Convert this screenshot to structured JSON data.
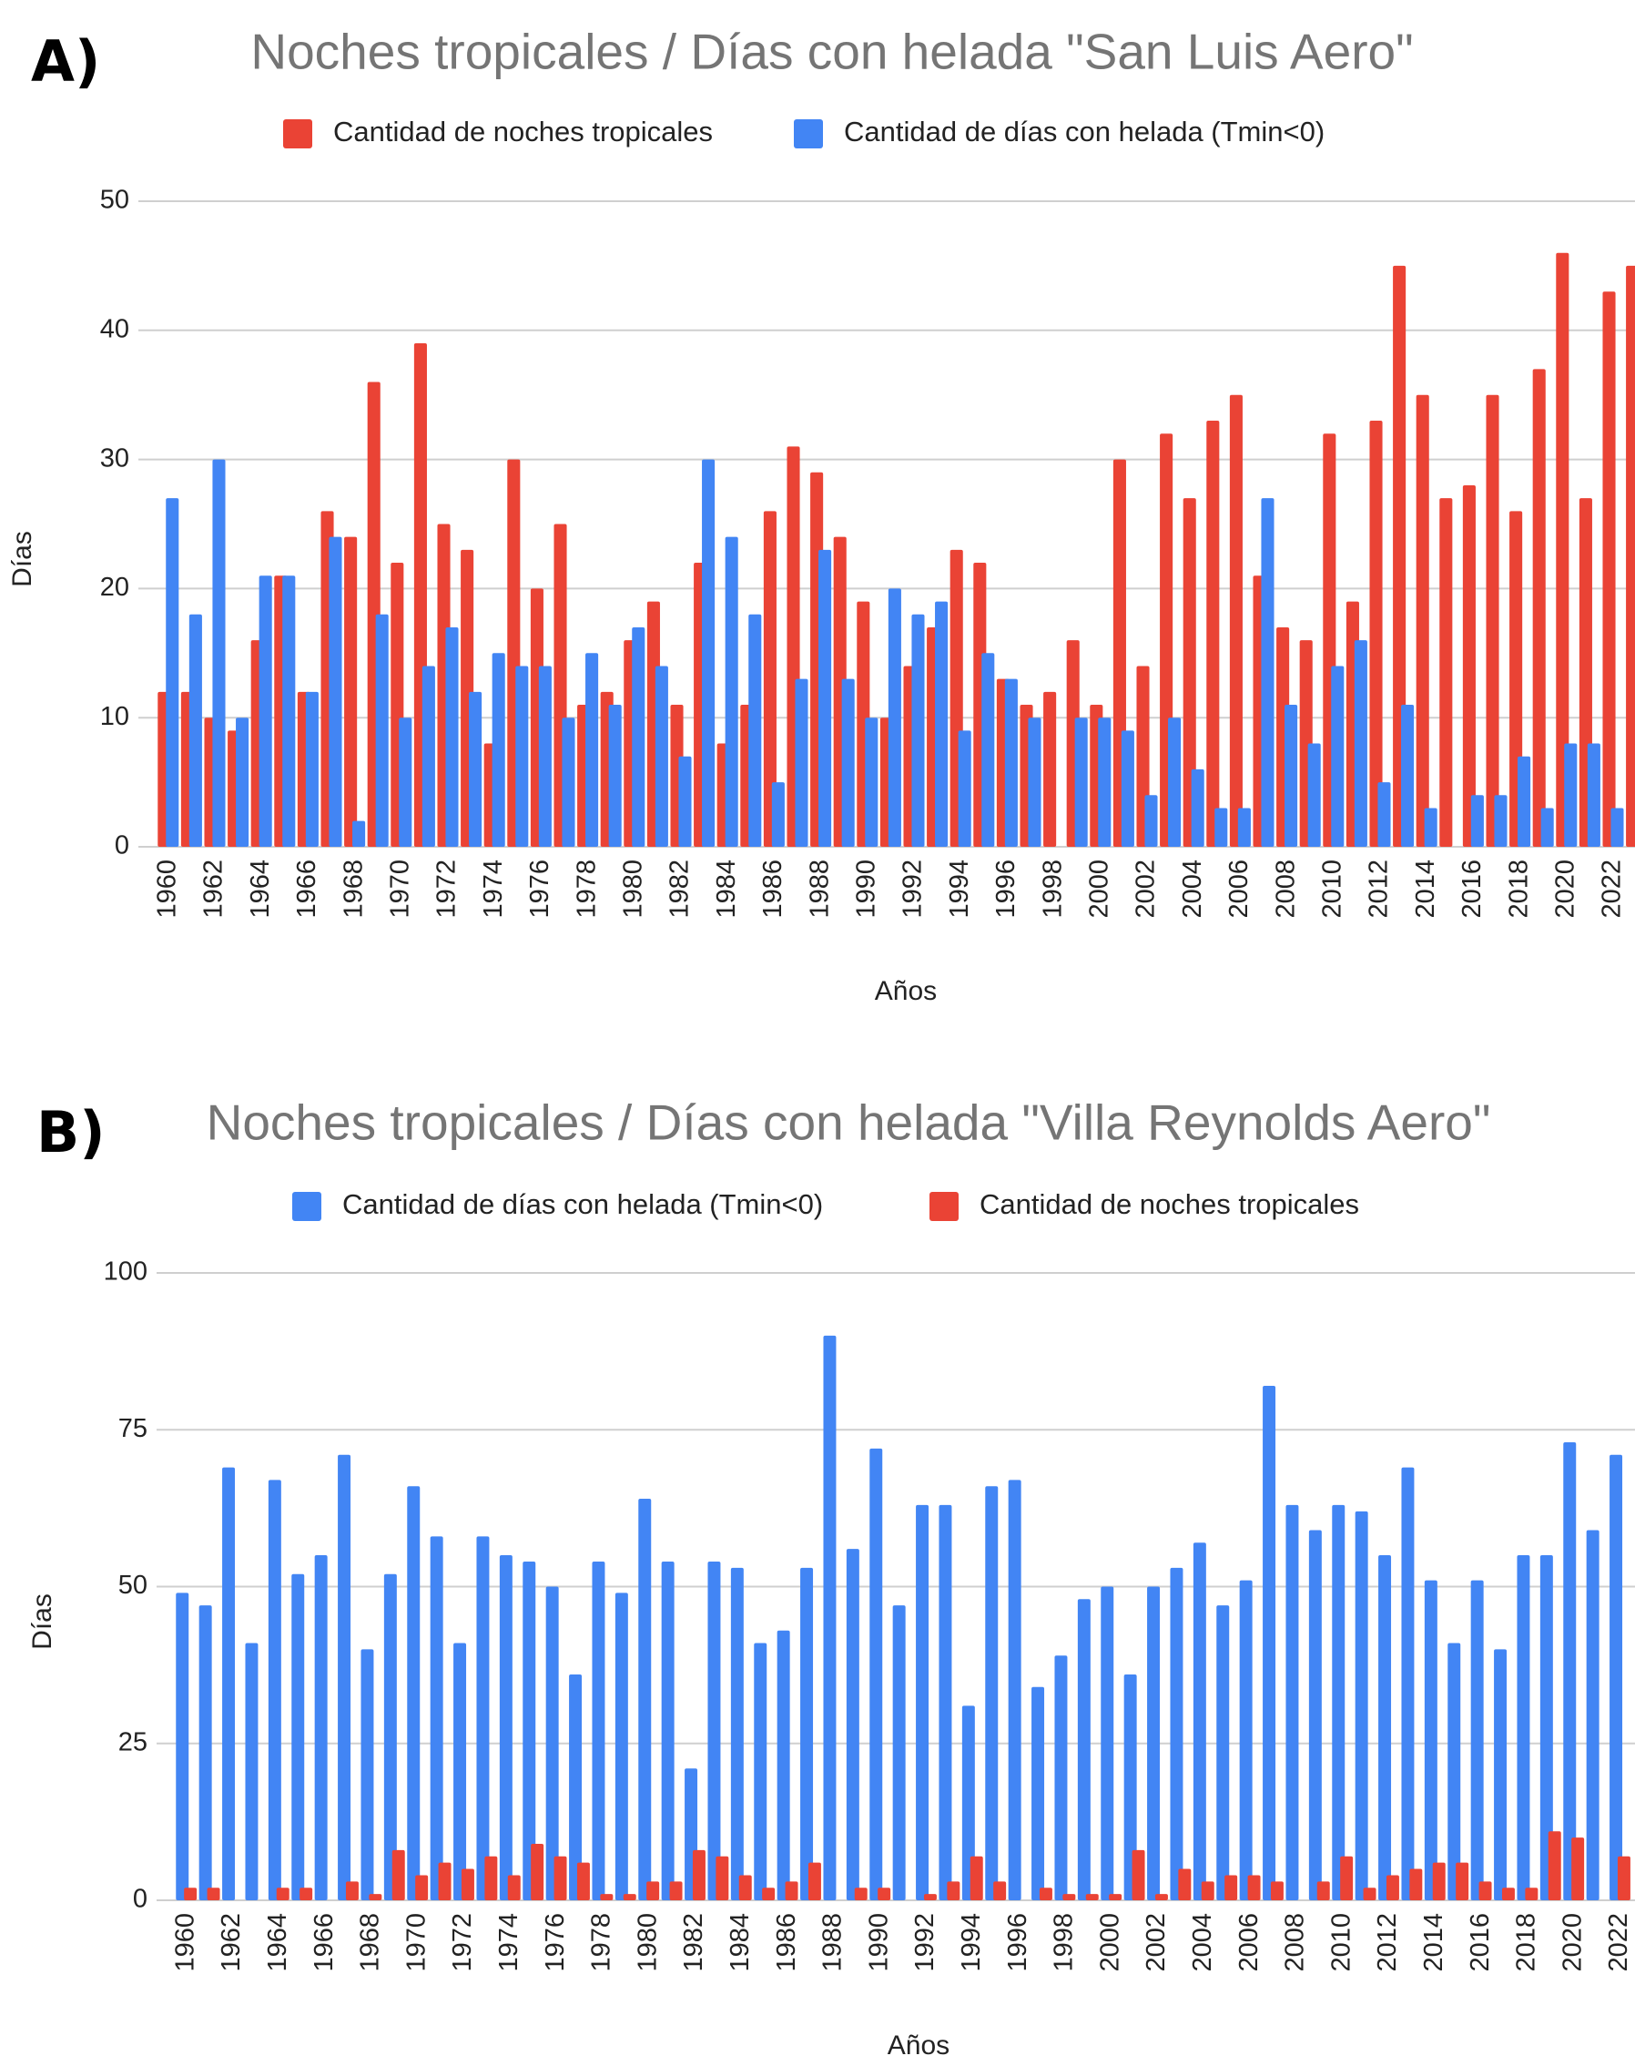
{
  "chart_data": [
    {
      "type": "bar",
      "panel_label": "A)",
      "title": "Noches tropicales / Días con helada \"San Luis Aero\"",
      "y_label": "Días",
      "x_label": "Años",
      "categories": [
        "1960",
        null,
        "1962",
        null,
        "1964",
        null,
        "1966",
        null,
        "1968",
        null,
        "1970",
        null,
        "1972",
        null,
        "1974",
        null,
        "1976",
        null,
        "1978",
        null,
        "1980",
        null,
        "1982",
        null,
        "1984",
        null,
        "1986",
        null,
        "1988",
        null,
        "1990",
        null,
        "1992",
        null,
        "1994",
        null,
        "1996",
        null,
        "1998",
        null,
        "2000",
        null,
        "2002",
        null,
        "2004",
        null,
        "2006",
        null,
        "2008",
        null,
        "2010",
        null,
        "2012",
        null,
        "2014",
        null,
        "2016",
        null,
        "2018",
        null,
        "2020",
        null,
        "2022",
        null
      ],
      "series": [
        {
          "name": "Cantidad de noches tropicales",
          "color": "#ea4335",
          "values": [
            12,
            12,
            10,
            9,
            16,
            21,
            12,
            26,
            24,
            36,
            22,
            39,
            25,
            23,
            8,
            30,
            20,
            25,
            11,
            12,
            16,
            19,
            11,
            22,
            8,
            11,
            26,
            31,
            29,
            24,
            19,
            10,
            14,
            17,
            23,
            22,
            13,
            11,
            12,
            16,
            11,
            30,
            14,
            32,
            27,
            33,
            35,
            21,
            17,
            16,
            32,
            19,
            33,
            45,
            35,
            27,
            28,
            35,
            26,
            37,
            46,
            27,
            43,
            45
          ]
        },
        {
          "name": "Cantidad de días con helada (Tmin<0)",
          "color": "#4285f4",
          "values": [
            27,
            18,
            30,
            10,
            21,
            21,
            12,
            24,
            2,
            18,
            10,
            14,
            17,
            12,
            15,
            14,
            14,
            10,
            15,
            11,
            17,
            14,
            7,
            30,
            24,
            18,
            5,
            13,
            23,
            13,
            10,
            20,
            18,
            19,
            9,
            15,
            13,
            10,
            0,
            10,
            10,
            9,
            4,
            10,
            6,
            3,
            3,
            27,
            11,
            8,
            14,
            16,
            5,
            11,
            3,
            0,
            4,
            4,
            7,
            3,
            8,
            8,
            3,
            null
          ]
        }
      ],
      "ylim": [
        0,
        50
      ],
      "yticks": [
        0,
        10,
        20,
        30,
        40,
        50
      ],
      "grid": true
    },
    {
      "type": "bar",
      "panel_label": "B)",
      "title": "Noches tropicales / Días con helada \"Villa Reynolds Aero\"",
      "y_label": "Días",
      "x_label": "Años",
      "categories": [
        "1960",
        null,
        "1962",
        null,
        "1964",
        null,
        "1966",
        null,
        "1968",
        null,
        "1970",
        null,
        "1972",
        null,
        "1974",
        null,
        "1976",
        null,
        "1978",
        null,
        "1980",
        null,
        "1982",
        null,
        "1984",
        null,
        "1986",
        null,
        "1988",
        null,
        "1990",
        null,
        "1992",
        null,
        "1994",
        null,
        "1996",
        null,
        "1998",
        null,
        "2000",
        null,
        "2002",
        null,
        "2004",
        null,
        "2006",
        null,
        "2008",
        null,
        "2010",
        null,
        "2012",
        null,
        "2014",
        null,
        "2016",
        null,
        "2018",
        null,
        "2020",
        null,
        "2022"
      ],
      "series": [
        {
          "name": "Cantidad de días con helada (Tmin<0)",
          "color": "#4285f4",
          "values": [
            49,
            47,
            69,
            41,
            67,
            52,
            55,
            71,
            40,
            52,
            66,
            58,
            41,
            58,
            55,
            54,
            50,
            36,
            54,
            49,
            64,
            54,
            21,
            54,
            53,
            41,
            43,
            53,
            90,
            56,
            72,
            47,
            63,
            63,
            31,
            66,
            67,
            34,
            39,
            48,
            50,
            36,
            50,
            53,
            57,
            47,
            51,
            82,
            63,
            59,
            63,
            62,
            55,
            69,
            51,
            41,
            51,
            40,
            55,
            55,
            73,
            59,
            71
          ]
        },
        {
          "name": "Cantidad de noches tropicales",
          "color": "#ea4335",
          "values": [
            2,
            2,
            0,
            0,
            2,
            2,
            0,
            3,
            1,
            8,
            4,
            6,
            5,
            7,
            4,
            9,
            7,
            6,
            1,
            1,
            3,
            3,
            8,
            7,
            4,
            2,
            3,
            6,
            0,
            2,
            2,
            0,
            1,
            3,
            7,
            3,
            0,
            2,
            1,
            1,
            1,
            8,
            1,
            5,
            3,
            4,
            4,
            3,
            0,
            3,
            7,
            2,
            4,
            5,
            6,
            6,
            3,
            2,
            2,
            11,
            10,
            0,
            7
          ]
        }
      ],
      "ylim": [
        0,
        100
      ],
      "yticks": [
        0,
        25,
        50,
        75,
        100
      ],
      "grid": true
    }
  ]
}
